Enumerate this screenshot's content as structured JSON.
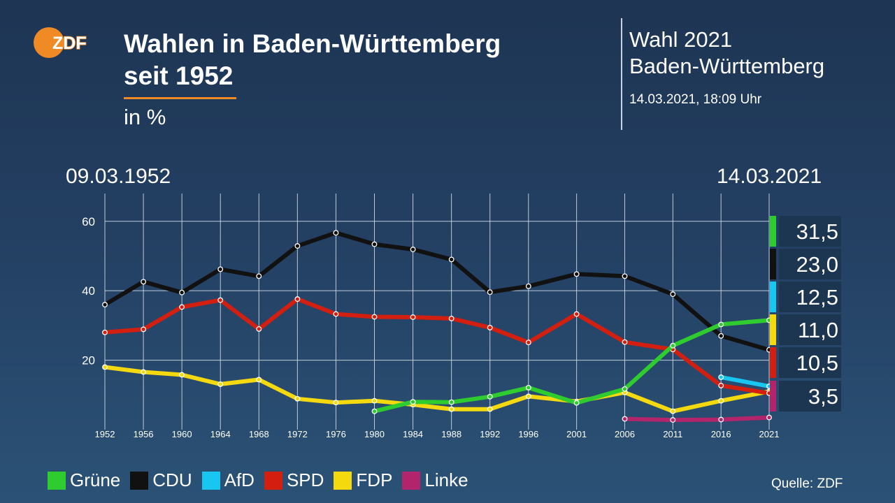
{
  "header": {
    "logo_text": "ZDF",
    "title_line1": "Wahlen in Baden-Württemberg",
    "title_line2": "seit 1952",
    "unit": "in %",
    "election_line1": "Wahl 2021",
    "election_line2": "Baden-Württemberg",
    "timestamp": "14.03.2021, 18:09 Uhr"
  },
  "date_start": "09.03.1952",
  "date_end": "14.03.2021",
  "source": "Quelle: ZDF",
  "chart_data": {
    "type": "line",
    "categories": [
      "1952",
      "1956",
      "1960",
      "1964",
      "1968",
      "1972",
      "1976",
      "1980",
      "1984",
      "1988",
      "1992",
      "1996",
      "2001",
      "2006",
      "2011",
      "2016",
      "2021"
    ],
    "y_ticks": [
      20,
      40,
      60
    ],
    "ylim": [
      0,
      68
    ],
    "grid": true,
    "legend_position": "bottom-left",
    "series": [
      {
        "name": "Grüne",
        "color": "#2fcc2f",
        "values": [
          null,
          null,
          null,
          null,
          null,
          null,
          null,
          5.3,
          8.0,
          7.9,
          9.5,
          12.1,
          7.7,
          11.7,
          24.2,
          30.3,
          31.5
        ]
      },
      {
        "name": "CDU",
        "color": "#111111",
        "values": [
          36.0,
          42.6,
          39.5,
          46.2,
          44.2,
          52.9,
          56.7,
          53.4,
          51.9,
          49.0,
          39.6,
          41.3,
          44.8,
          44.2,
          39.0,
          27.0,
          23.0
        ]
      },
      {
        "name": "AfD",
        "color": "#18c6f2",
        "values": [
          null,
          null,
          null,
          null,
          null,
          null,
          null,
          null,
          null,
          null,
          null,
          null,
          null,
          null,
          null,
          15.1,
          12.5
        ]
      },
      {
        "name": "SPD",
        "color": "#d21f10",
        "values": [
          28.0,
          28.9,
          35.3,
          37.3,
          29.0,
          37.6,
          33.3,
          32.5,
          32.4,
          32.0,
          29.4,
          25.1,
          33.3,
          25.2,
          23.1,
          12.7,
          10.5
        ]
      },
      {
        "name": "FDP",
        "color": "#f5d90f",
        "values": [
          18.0,
          16.6,
          15.8,
          13.1,
          14.4,
          8.9,
          7.8,
          8.3,
          7.2,
          5.9,
          5.9,
          9.6,
          8.1,
          10.7,
          5.3,
          8.3,
          11.0
        ]
      },
      {
        "name": "Linke",
        "color": "#b2246c",
        "values": [
          null,
          null,
          null,
          null,
          null,
          null,
          null,
          null,
          null,
          null,
          null,
          null,
          null,
          3.1,
          2.8,
          2.9,
          3.5
        ]
      }
    ],
    "result_labels": [
      {
        "value": "31,5",
        "color": "#2fcc2f"
      },
      {
        "value": "23,0",
        "color": "#111111"
      },
      {
        "value": "12,5",
        "color": "#18c6f2"
      },
      {
        "value": "11,0",
        "color": "#f5d90f"
      },
      {
        "value": "10,5",
        "color": "#d21f10"
      },
      {
        "value": "3,5",
        "color": "#b2246c"
      }
    ]
  }
}
